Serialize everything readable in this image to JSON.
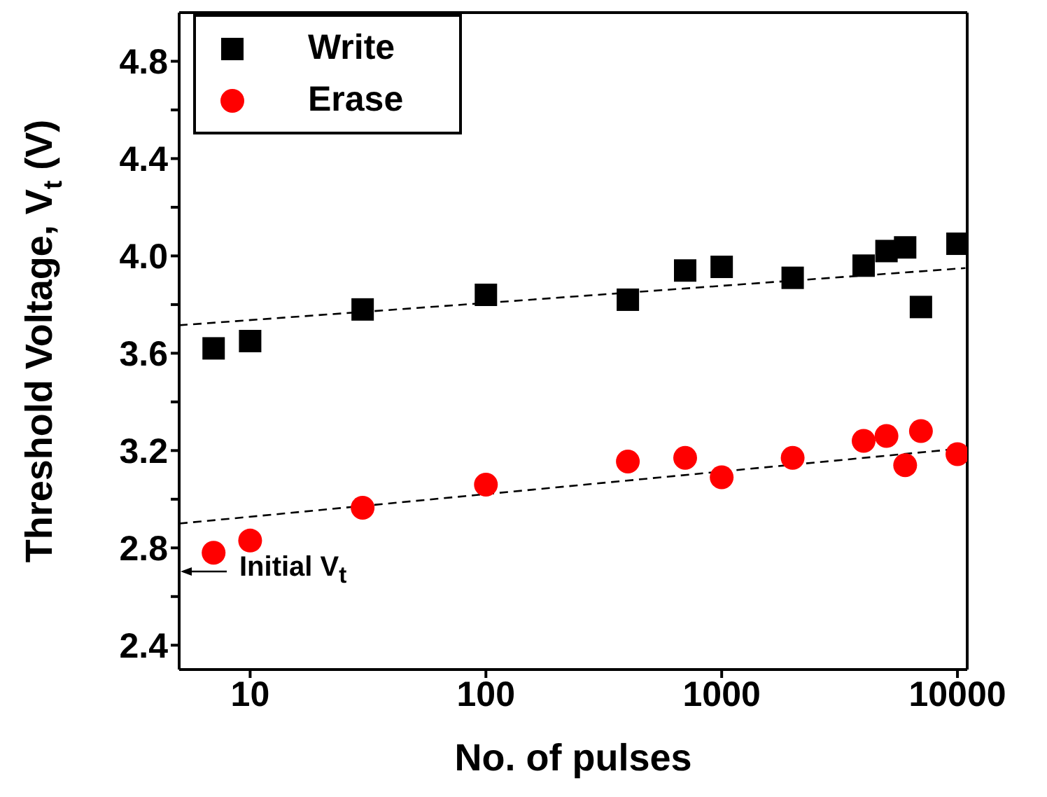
{
  "chart_data": {
    "type": "scatter",
    "xlabel": "No. of pulses",
    "ylabel": "Threshold Voltage, V$_{t}$ (V)",
    "log": "x",
    "grid": false,
    "legend": "top left",
    "xlim": [
      5,
      11000
    ],
    "xticks": [
      10,
      100,
      1000,
      10000
    ],
    "ylim": [
      2.3,
      5.0
    ],
    "yticks": [
      {
        "value": 2.4,
        "label": "2.4"
      },
      {
        "value": 2.6,
        "label": null
      },
      {
        "value": 2.8,
        "label": "2.8"
      },
      {
        "value": 3.0,
        "label": null
      },
      {
        "value": 3.2,
        "label": "3.2"
      },
      {
        "value": 3.4,
        "label": null
      },
      {
        "value": 3.6,
        "label": "3.6"
      },
      {
        "value": 3.8,
        "label": null
      },
      {
        "value": 4.0,
        "label": "4.0"
      },
      {
        "value": 4.2,
        "label": null
      },
      {
        "value": 4.4,
        "label": "4.4"
      },
      {
        "value": 4.6,
        "label": null
      },
      {
        "value": 4.8,
        "label": "4.8"
      }
    ],
    "series": [
      {
        "name": "Write",
        "marker": "square",
        "color": "#000000",
        "x": [
          7,
          10,
          30,
          100,
          400,
          700,
          1000,
          2000,
          4000,
          5000,
          6000,
          7000,
          10000
        ],
        "values": [
          3.62,
          3.65,
          3.78,
          3.84,
          3.82,
          3.94,
          3.955,
          3.91,
          3.96,
          4.02,
          4.035,
          3.79,
          4.05
        ]
      },
      {
        "name": "Erase",
        "marker": "circle",
        "color": "#ff0000",
        "x": [
          7,
          10,
          30,
          100,
          400,
          700,
          1000,
          2000,
          4000,
          5000,
          6000,
          7000,
          10000
        ],
        "values": [
          2.78,
          2.83,
          2.965,
          3.06,
          3.155,
          3.17,
          3.09,
          3.17,
          3.24,
          3.26,
          3.14,
          3.28,
          3.185
        ]
      },
      {
        "type": "line",
        "marker": "none",
        "line_style": "dashed",
        "color": "#000000",
        "x": [
          5,
          10800
        ],
        "values": [
          3.715,
          3.95
        ]
      },
      {
        "type": "line",
        "marker": "none",
        "line_style": "dashed",
        "color": "#000000",
        "x": [
          5,
          10800
        ],
        "values": [
          2.9,
          3.21
        ]
      }
    ],
    "annotations": [
      "Initial V$_{t}$"
    ]
  }
}
